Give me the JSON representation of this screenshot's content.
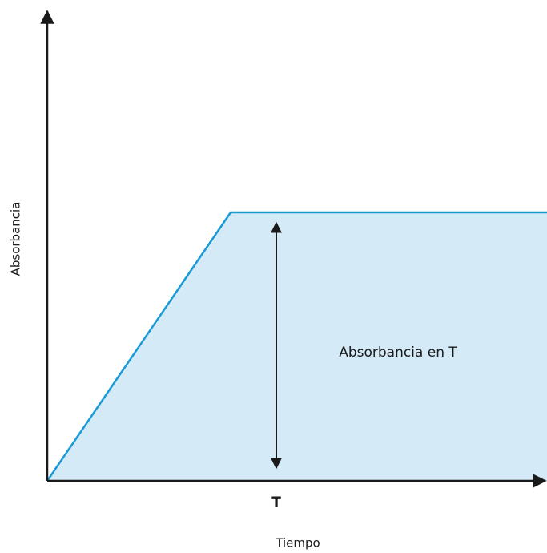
{
  "y_axis_label": "Absorbancia",
  "x_axis_label": "Tiempo",
  "x_marker_label": "T",
  "annotation": "Absorbancia en T"
}
